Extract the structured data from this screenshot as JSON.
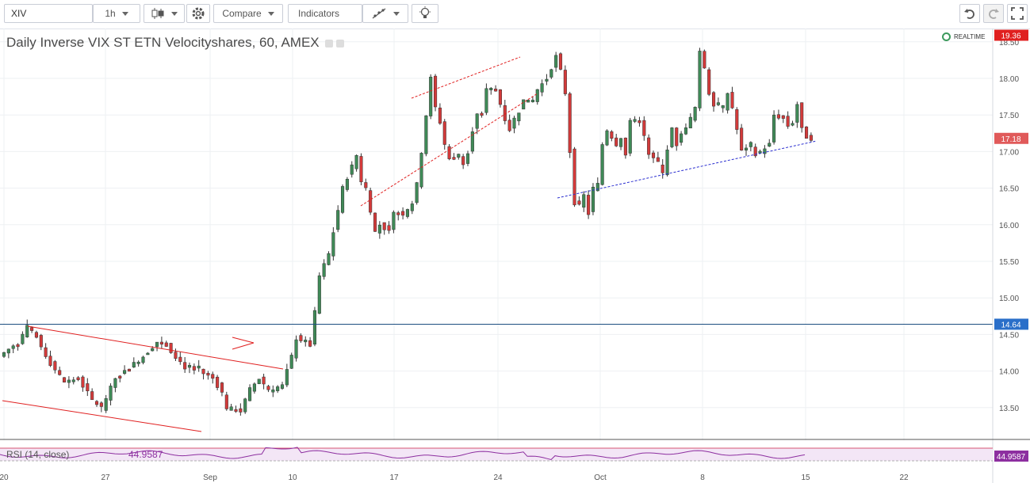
{
  "toolbar": {
    "symbol": "XIV",
    "interval": "1h",
    "compare_label": "Compare",
    "indicators_label": "Indicators"
  },
  "chart_header": {
    "title": "Daily Inverse VIX ST ETN Velocityshares, 60, AMEX",
    "realtime": "REALTIME"
  },
  "price_axis": {
    "ticks": [
      "18.50",
      "18.00",
      "17.50",
      "17.00",
      "16.50",
      "16.00",
      "15.50",
      "15.00",
      "14.50",
      "14.00",
      "13.50"
    ],
    "badges": {
      "high": "19.36",
      "last": "17.18",
      "line": "14.64",
      "rsi": "44.9587"
    }
  },
  "time_axis": {
    "ticks": [
      "20",
      "27",
      "Sep",
      "10",
      "17",
      "24",
      "Oct",
      "8",
      "15",
      "22"
    ]
  },
  "rsi": {
    "label": "RSI (14, close)",
    "value": "44.9587"
  },
  "colors": {
    "up": "#3f8a57",
    "down": "#d33a3a",
    "trend_red": "#e02020",
    "hline": "#1c4e80",
    "trend_blue": "#2b2fd0",
    "rsi_line": "#8d2fa0",
    "rsi_band": "#f3e6f6"
  },
  "chart_data": {
    "type": "candlestick",
    "title": "Daily Inverse VIX ST ETN Velocityshares, 60, AMEX",
    "ylim": [
      13.0,
      18.7
    ],
    "x_ticks": [
      "20",
      "27",
      "Sep",
      "10",
      "17",
      "24",
      "Oct",
      "8",
      "15",
      "22"
    ],
    "horizontal_line": 14.64,
    "anchors": [
      [
        -1,
        14.2
      ],
      [
        3,
        14.4
      ],
      [
        5,
        14.6
      ],
      [
        7,
        14.45
      ],
      [
        10,
        14.1
      ],
      [
        13,
        13.85
      ],
      [
        16,
        13.9
      ],
      [
        19,
        13.6
      ],
      [
        21,
        13.5
      ],
      [
        24,
        13.9
      ],
      [
        27,
        14.05
      ],
      [
        30,
        14.2
      ],
      [
        33,
        14.4
      ],
      [
        35,
        14.35
      ],
      [
        37,
        14.2
      ],
      [
        39,
        14.05
      ],
      [
        42,
        14.0
      ],
      [
        45,
        13.9
      ],
      [
        47,
        13.7
      ],
      [
        48,
        13.5
      ],
      [
        51,
        13.45
      ],
      [
        53,
        13.75
      ],
      [
        55,
        13.9
      ],
      [
        57,
        13.75
      ],
      [
        60,
        13.8
      ],
      [
        62,
        14.2
      ],
      [
        63,
        14.45
      ],
      [
        65,
        14.4
      ],
      [
        66,
        14.35
      ],
      [
        67,
        14.8
      ],
      [
        68,
        15.3
      ],
      [
        70,
        15.6
      ],
      [
        71,
        15.9
      ],
      [
        72,
        16.2
      ],
      [
        73,
        16.5
      ],
      [
        74,
        16.65
      ],
      [
        76,
        16.95
      ],
      [
        77,
        16.6
      ],
      [
        78,
        16.5
      ],
      [
        79,
        16.2
      ],
      [
        80,
        15.9
      ],
      [
        81,
        16.0
      ],
      [
        83,
        15.9
      ],
      [
        84,
        16.2
      ],
      [
        86,
        16.15
      ],
      [
        88,
        16.3
      ],
      [
        89,
        16.55
      ],
      [
        90,
        17.0
      ],
      [
        91,
        17.5
      ],
      [
        92,
        18.0
      ],
      [
        93,
        17.6
      ],
      [
        94,
        17.4
      ],
      [
        95,
        17.1
      ],
      [
        96,
        16.9
      ],
      [
        98,
        16.95
      ],
      [
        99,
        16.85
      ],
      [
        100,
        17.0
      ],
      [
        101,
        17.3
      ],
      [
        102,
        17.5
      ],
      [
        103,
        17.5
      ],
      [
        104,
        17.85
      ],
      [
        106,
        17.85
      ],
      [
        107,
        17.65
      ],
      [
        108,
        17.45
      ],
      [
        109,
        17.3
      ],
      [
        110,
        17.45
      ],
      [
        111,
        17.55
      ],
      [
        112,
        17.7
      ],
      [
        114,
        17.7
      ],
      [
        115,
        17.85
      ],
      [
        117,
        18.0
      ],
      [
        118,
        18.15
      ],
      [
        119,
        18.3
      ],
      [
        120,
        18.1
      ],
      [
        121,
        17.8
      ],
      [
        122,
        17.0
      ],
      [
        123,
        16.3
      ],
      [
        124,
        16.25
      ],
      [
        125,
        16.4
      ],
      [
        126,
        16.15
      ],
      [
        127,
        16.5
      ],
      [
        128,
        16.55
      ],
      [
        129,
        17.1
      ],
      [
        130,
        17.3
      ],
      [
        132,
        17.1
      ],
      [
        133,
        17.2
      ],
      [
        134,
        16.95
      ],
      [
        135,
        17.4
      ],
      [
        137,
        17.45
      ],
      [
        138,
        17.2
      ],
      [
        139,
        16.95
      ],
      [
        141,
        16.85
      ],
      [
        142,
        16.7
      ],
      [
        143,
        17.05
      ],
      [
        144,
        17.3
      ],
      [
        145,
        17.1
      ],
      [
        147,
        17.35
      ],
      [
        148,
        17.45
      ],
      [
        149,
        17.6
      ],
      [
        150,
        18.35
      ],
      [
        151,
        18.15
      ],
      [
        152,
        17.8
      ],
      [
        153,
        17.65
      ],
      [
        155,
        17.6
      ],
      [
        156,
        17.8
      ],
      [
        157,
        17.6
      ],
      [
        158,
        17.3
      ],
      [
        159,
        17.0
      ],
      [
        161,
        17.1
      ],
      [
        162,
        16.95
      ],
      [
        163,
        17.0
      ],
      [
        164,
        17.05
      ],
      [
        165,
        17.1
      ],
      [
        166,
        17.5
      ],
      [
        168,
        17.45
      ],
      [
        169,
        17.35
      ],
      [
        170,
        17.4
      ],
      [
        171,
        17.65
      ],
      [
        172,
        17.3
      ],
      [
        173,
        17.2
      ],
      [
        174,
        17.18
      ]
    ]
  }
}
